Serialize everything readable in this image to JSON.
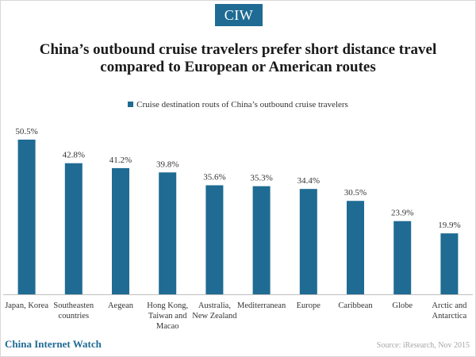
{
  "logo": "CIW",
  "footer": {
    "brand": "China Internet Watch",
    "source": "Source: iResearch, Nov 2015"
  },
  "colors": {
    "bar": "#1f6b93",
    "axis": "#bfbfbf",
    "text": "#333333"
  },
  "chart_data": {
    "type": "bar",
    "title": "China’s outbound cruise travelers prefer short distance travel compared to European or American routes",
    "legend": "top",
    "grid": false,
    "categories": [
      [
        "Japan, Korea"
      ],
      [
        "Southeasten",
        "countries"
      ],
      [
        "Aegean"
      ],
      [
        "Hong Kong,",
        "Taiwan and",
        "Macao"
      ],
      [
        "Australia,",
        "New Zealand"
      ],
      [
        "Mediterranean"
      ],
      [
        "Europe"
      ],
      [
        "Caribbean"
      ],
      [
        "Globe"
      ],
      [
        "Arctic and",
        "Antarctica"
      ]
    ],
    "series": [
      {
        "name": "Cruise destination routs of China’s outbound cruise travelers",
        "values": [
          50.5,
          42.8,
          41.2,
          39.8,
          35.6,
          35.3,
          34.4,
          30.5,
          23.9,
          19.9
        ],
        "labels": [
          "50.5%",
          "42.8%",
          "41.2%",
          "39.8%",
          "35.6%",
          "35.3%",
          "34.4%",
          "30.5%",
          "23.9%",
          "19.9%"
        ]
      }
    ],
    "ylim": [
      0,
      50.5
    ],
    "xlabel": "",
    "ylabel": ""
  }
}
